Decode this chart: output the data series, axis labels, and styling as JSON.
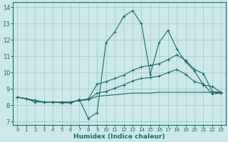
{
  "title": "",
  "xlabel": "Humidex (Indice chaleur)",
  "ylabel": "",
  "bg_color": "#cce8e8",
  "grid_color": "#aacccc",
  "line_color": "#1a6b6b",
  "xlim": [
    -0.5,
    23.5
  ],
  "ylim": [
    6.8,
    14.3
  ],
  "xticks": [
    0,
    1,
    2,
    3,
    4,
    5,
    6,
    7,
    8,
    9,
    10,
    11,
    12,
    13,
    14,
    15,
    16,
    17,
    18,
    19,
    20,
    21,
    22,
    23
  ],
  "yticks": [
    7,
    8,
    9,
    10,
    11,
    12,
    13,
    14
  ],
  "series": [
    {
      "x": [
        0,
        1,
        2,
        3,
        4,
        5,
        6,
        7,
        8,
        9,
        10,
        11,
        12,
        13,
        14,
        15,
        16,
        17,
        18,
        19,
        20,
        21,
        22,
        23
      ],
      "y": [
        8.5,
        8.4,
        8.2,
        8.2,
        8.2,
        8.15,
        8.15,
        8.35,
        7.2,
        7.55,
        11.85,
        12.5,
        13.45,
        13.8,
        13.0,
        9.9,
        11.85,
        12.6,
        11.45,
        10.65,
        10.1,
        9.25,
        9.15,
        8.8
      ],
      "marker": true,
      "linestyle": "-"
    },
    {
      "x": [
        0,
        1,
        2,
        3,
        4,
        5,
        6,
        7,
        8,
        9,
        10,
        11,
        12,
        13,
        14,
        15,
        16,
        17,
        18,
        19,
        20,
        21,
        22,
        23
      ],
      "y": [
        8.5,
        8.4,
        8.3,
        8.2,
        8.2,
        8.2,
        8.2,
        8.3,
        8.4,
        9.3,
        9.45,
        9.65,
        9.85,
        10.15,
        10.35,
        10.45,
        10.55,
        10.8,
        11.1,
        10.75,
        10.2,
        9.95,
        8.85,
        8.8
      ],
      "marker": true,
      "linestyle": "-"
    },
    {
      "x": [
        0,
        1,
        2,
        3,
        4,
        5,
        6,
        7,
        8,
        9,
        10,
        11,
        12,
        13,
        14,
        15,
        16,
        17,
        18,
        19,
        20,
        21,
        22,
        23
      ],
      "y": [
        8.5,
        8.4,
        8.3,
        8.2,
        8.2,
        8.2,
        8.2,
        8.3,
        8.35,
        8.75,
        8.85,
        9.05,
        9.25,
        9.5,
        9.65,
        9.7,
        9.8,
        10.0,
        10.2,
        9.9,
        9.45,
        9.3,
        8.7,
        8.75
      ],
      "marker": true,
      "linestyle": "-"
    },
    {
      "x": [
        0,
        1,
        2,
        3,
        4,
        5,
        6,
        7,
        8,
        9,
        10,
        11,
        12,
        13,
        14,
        15,
        16,
        17,
        18,
        19,
        20,
        21,
        22,
        23
      ],
      "y": [
        8.5,
        8.4,
        8.3,
        8.2,
        8.2,
        8.2,
        8.2,
        8.3,
        8.35,
        8.55,
        8.6,
        8.65,
        8.7,
        8.75,
        8.75,
        8.75,
        8.8,
        8.8,
        8.8,
        8.8,
        8.8,
        8.8,
        8.8,
        8.75
      ],
      "marker": false,
      "linestyle": "-"
    }
  ]
}
